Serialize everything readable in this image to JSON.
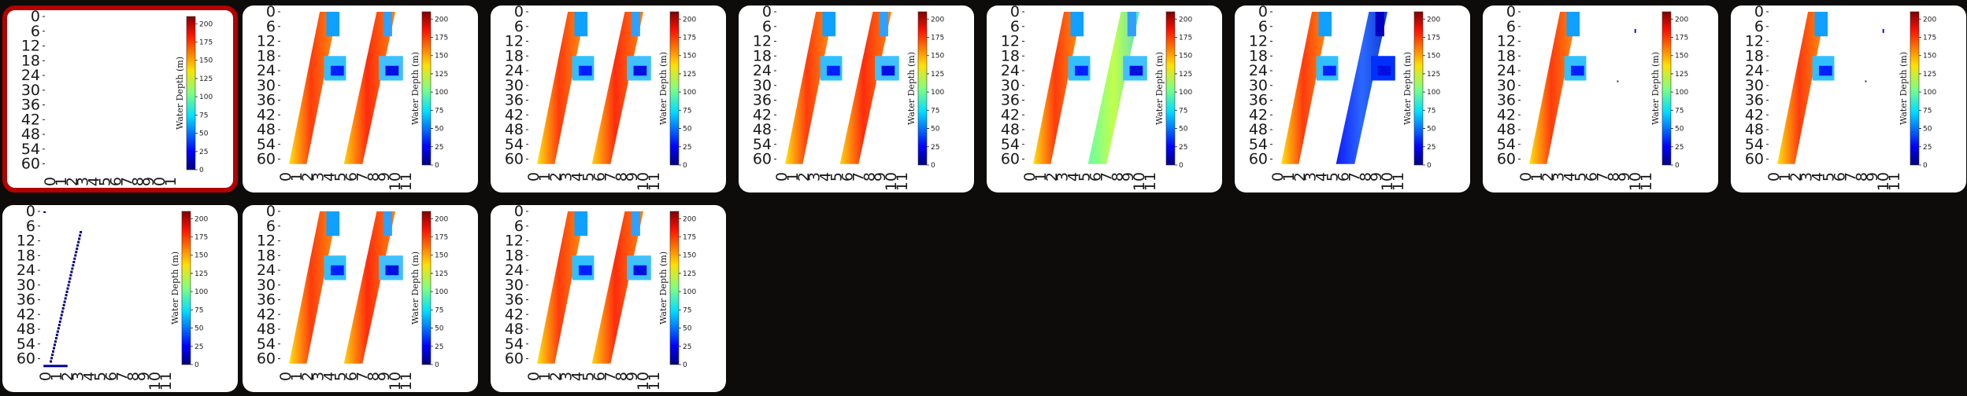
{
  "gallery": {
    "selected_index": 0,
    "cards": [
      {
        "id": "card-1",
        "style": "empty"
      },
      {
        "id": "card-2",
        "style": "dual-red"
      },
      {
        "id": "card-3",
        "style": "dual-red"
      },
      {
        "id": "card-4",
        "style": "dual-red-alt"
      },
      {
        "id": "card-5",
        "style": "dual-green"
      },
      {
        "id": "card-6",
        "style": "dual-blue"
      },
      {
        "id": "card-7",
        "style": "single"
      },
      {
        "id": "card-8",
        "style": "single"
      },
      {
        "id": "card-9",
        "style": "sparse"
      },
      {
        "id": "card-10",
        "style": "dual-red"
      },
      {
        "id": "card-11",
        "style": "dual-red"
      }
    ]
  },
  "heatmap": {
    "y_ticks": [
      "0",
      "6",
      "12",
      "18",
      "24",
      "30",
      "36",
      "42",
      "48",
      "54",
      "60"
    ],
    "x_ticks": [
      "0",
      "1",
      "2",
      "3",
      "4",
      "5",
      "6",
      "7",
      "8",
      "9",
      "10",
      "11"
    ],
    "colorbar_label": "Water Depth (m)",
    "colorbar_ticks": [
      "0",
      "25",
      "50",
      "75",
      "100",
      "125",
      "150",
      "175",
      "200"
    ],
    "colorbar_max": 210
  },
  "colors": {
    "background": "#0d0c0b",
    "card": "#ffffff",
    "selected_border": "#b30000"
  }
}
